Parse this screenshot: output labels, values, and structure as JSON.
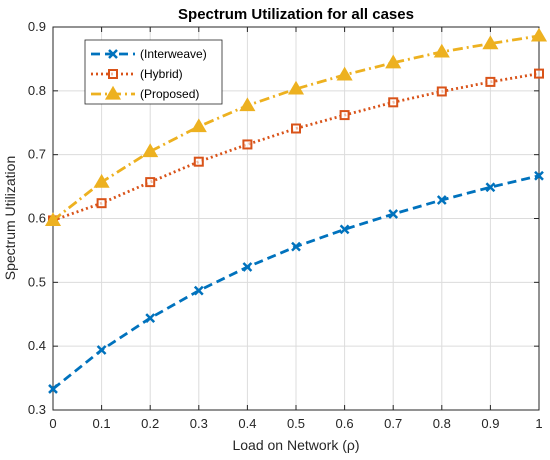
{
  "chart_data": {
    "type": "line",
    "title": "Spectrum Utilization for all cases",
    "xlabel": "Load on Network (ρ)",
    "ylabel": "Spectrum Utilization",
    "xlim": [
      0,
      1
    ],
    "ylim": [
      0.3,
      0.9
    ],
    "x_ticks": [
      0,
      0.1,
      0.2,
      0.3,
      0.4,
      0.5,
      0.6,
      0.7,
      0.8,
      0.9,
      1
    ],
    "x_tick_labels": [
      "0",
      "0.1",
      "0.2",
      "0.3",
      "0.4",
      "0.5",
      "0.6",
      "0.7",
      "0.8",
      "0.9",
      "1"
    ],
    "y_ticks": [
      0.3,
      0.4,
      0.5,
      0.6,
      0.7,
      0.8,
      0.9
    ],
    "y_tick_labels": [
      "0.3",
      "0.4",
      "0.5",
      "0.6",
      "0.7",
      "0.8",
      "0.9"
    ],
    "grid": true,
    "legend_position": "top-left",
    "x": [
      0,
      0.1,
      0.2,
      0.3,
      0.4,
      0.5,
      0.6,
      0.7,
      0.8,
      0.9,
      1
    ],
    "series": [
      {
        "name": "(Interweave)",
        "color": "#0072BD",
        "line_style": "dashed",
        "marker": "x",
        "values": [
          0.333,
          0.394,
          0.444,
          0.487,
          0.524,
          0.556,
          0.583,
          0.607,
          0.629,
          0.649,
          0.667
        ]
      },
      {
        "name": "(Hybrid)",
        "color": "#D95319",
        "line_style": "dotted",
        "marker": "square",
        "values": [
          0.597,
          0.624,
          0.657,
          0.689,
          0.716,
          0.741,
          0.762,
          0.782,
          0.799,
          0.814,
          0.827
        ]
      },
      {
        "name": "(Proposed)",
        "color": "#EDB120",
        "line_style": "dash-dot",
        "marker": "triangle",
        "values": [
          0.597,
          0.657,
          0.705,
          0.744,
          0.777,
          0.803,
          0.825,
          0.844,
          0.861,
          0.874,
          0.886
        ]
      }
    ]
  }
}
